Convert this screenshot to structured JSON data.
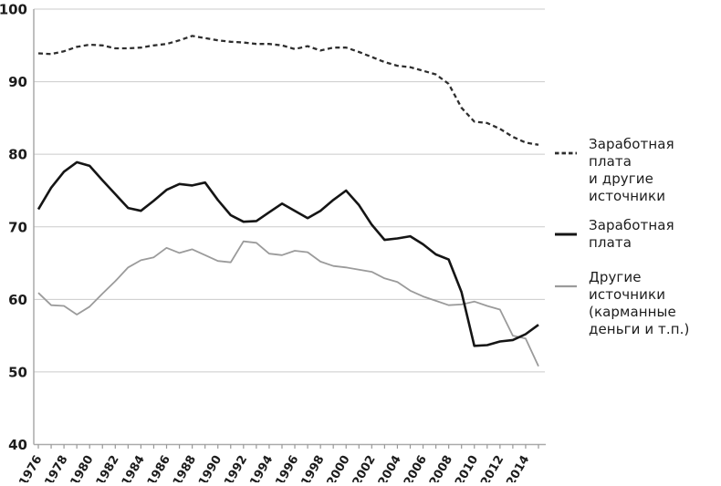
{
  "chart_data": {
    "type": "line",
    "x": [
      1976,
      1977,
      1978,
      1979,
      1980,
      1981,
      1982,
      1983,
      1984,
      1985,
      1986,
      1987,
      1988,
      1989,
      1990,
      1991,
      1992,
      1993,
      1994,
      1995,
      1996,
      1997,
      1998,
      1999,
      2000,
      2001,
      2002,
      2003,
      2004,
      2005,
      2006,
      2007,
      2008,
      2009,
      2010,
      2011,
      2012,
      2013,
      2014,
      2015
    ],
    "x_tick_labels": [
      "1976",
      "1978",
      "1980",
      "1982",
      "1984",
      "1986",
      "1988",
      "1990",
      "1992",
      "1994",
      "1996",
      "1998",
      "2000",
      "2002",
      "2004",
      "2006",
      "2008",
      "2010",
      "2012",
      "2014"
    ],
    "x_tick_label_step": 2,
    "y_ticks": [
      40,
      50,
      60,
      70,
      80,
      90,
      100
    ],
    "ylim": [
      40,
      100
    ],
    "grid": "horizontal",
    "legend_position": "right",
    "title": "",
    "xlabel": "",
    "ylabel": "",
    "series": [
      {
        "name": "Другие источники (карманные деньги и т.п.)",
        "style": "solid-thin",
        "color": "#9b9b9b",
        "values": [
          60.9,
          59.2,
          59.1,
          57.9,
          59.0,
          60.8,
          62.5,
          64.4,
          65.4,
          65.8,
          67.1,
          66.4,
          66.9,
          66.1,
          65.3,
          65.1,
          68.0,
          67.8,
          66.3,
          66.1,
          66.7,
          66.5,
          65.2,
          64.6,
          64.4,
          64.1,
          63.8,
          62.9,
          62.4,
          61.2,
          60.4,
          59.8,
          59.2,
          59.3,
          59.7,
          59.1,
          58.6,
          55.0,
          54.6,
          50.8
        ]
      },
      {
        "name": "Заработная плата",
        "style": "solid-bold",
        "color": "#151515",
        "values": [
          72.4,
          75.4,
          77.6,
          78.9,
          78.4,
          76.4,
          74.5,
          72.6,
          72.2,
          73.6,
          75.1,
          75.9,
          75.7,
          76.1,
          73.7,
          71.6,
          70.7,
          70.8,
          72.0,
          73.2,
          72.2,
          71.2,
          72.2,
          73.7,
          75.0,
          73.0,
          70.3,
          68.2,
          68.4,
          68.7,
          67.6,
          66.2,
          65.5,
          61.0,
          53.6,
          53.7,
          54.2,
          54.4,
          55.2,
          56.5
        ]
      },
      {
        "name": "Заработная плата и другие источники",
        "style": "dashed",
        "color": "#2e2e2e",
        "values": [
          93.9,
          93.8,
          94.2,
          94.8,
          95.1,
          95.0,
          94.6,
          94.6,
          94.7,
          95.0,
          95.2,
          95.7,
          96.3,
          96.0,
          95.7,
          95.5,
          95.4,
          95.2,
          95.2,
          95.0,
          94.5,
          94.9,
          94.3,
          94.7,
          94.7,
          94.1,
          93.4,
          92.7,
          92.2,
          92.0,
          91.5,
          91.0,
          89.7,
          86.4,
          84.5,
          84.3,
          83.5,
          82.4,
          81.6,
          81.3
        ]
      }
    ]
  },
  "legend": {
    "items": [
      {
        "style": "dashed",
        "color": "#2e2e2e",
        "lines": [
          "Заработная плата",
          "и другие источники"
        ]
      },
      {
        "style": "solid-bold",
        "color": "#151515",
        "lines": [
          "Заработная плата"
        ]
      },
      {
        "style": "solid-thin",
        "color": "#9b9b9b",
        "lines": [
          "Другие источники",
          "(карманные",
          "деньги и т.п.)"
        ]
      }
    ]
  },
  "colors": {
    "grid": "#cbcbcb",
    "axis": "#aaaaaa",
    "tick": "#999999",
    "tick_label": "#1c1c1c"
  }
}
